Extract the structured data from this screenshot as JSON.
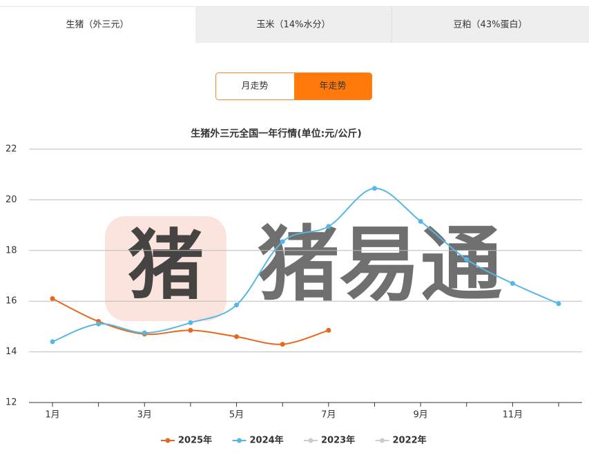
{
  "tabs": [
    "生猪（外三元）",
    "玉米（14%水分）",
    "豆粕（43%蛋白）"
  ],
  "toggle": [
    "月走势",
    "年走势"
  ],
  "watermark": {
    "icon": "猪",
    "text": "猪易通"
  },
  "chart_data": {
    "type": "line",
    "title": "生猪外三元全国一年行情(单位:元/公斤)",
    "categories": [
      "1月",
      null,
      "3月",
      null,
      "5月",
      null,
      "7月",
      null,
      "9月",
      null,
      "11月",
      null
    ],
    "series": [
      {
        "name": "2025年",
        "color": "#e8671c",
        "values": [
          16.1,
          15.2,
          14.7,
          14.85,
          14.6,
          14.3,
          14.85,
          null,
          null,
          null,
          null,
          null
        ]
      },
      {
        "name": "2024年",
        "color": "#55b8e4",
        "values": [
          14.4,
          15.1,
          14.75,
          15.15,
          15.85,
          18.35,
          18.95,
          20.45,
          19.15,
          17.65,
          16.7,
          15.9
        ]
      },
      {
        "name": "2023年",
        "color": "#cccccc",
        "values": [
          null,
          null,
          null,
          null,
          null,
          null,
          null,
          null,
          null,
          null,
          null,
          null
        ]
      },
      {
        "name": "2022年",
        "color": "#cccccc",
        "values": [
          null,
          null,
          null,
          null,
          null,
          null,
          null,
          null,
          null,
          null,
          null,
          null
        ]
      }
    ],
    "ylim": [
      12,
      22
    ],
    "yticks": [
      12,
      14,
      16,
      18,
      20,
      22
    ],
    "grid": true,
    "legend": "bottom"
  }
}
